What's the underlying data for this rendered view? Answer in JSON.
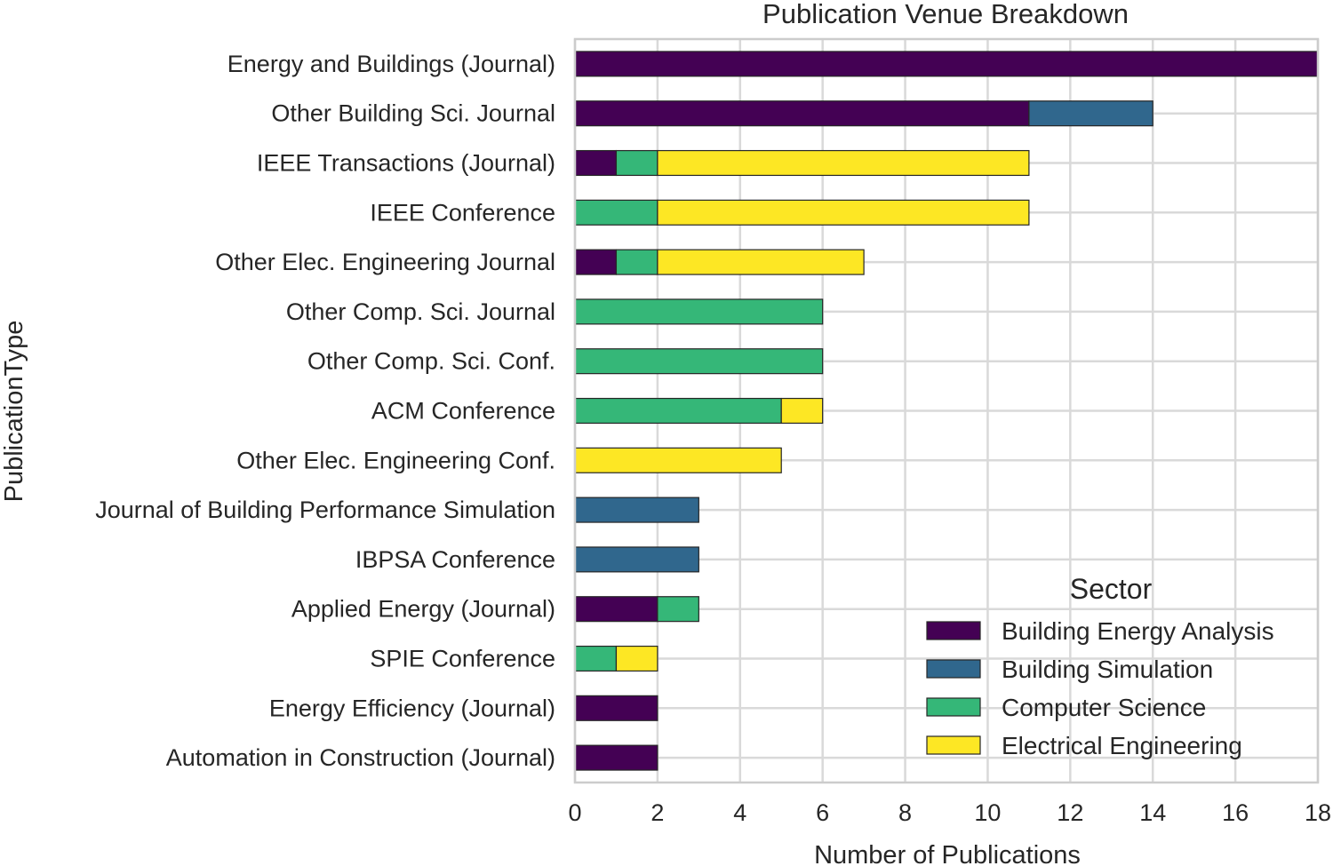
{
  "chart_data": {
    "type": "bar",
    "orientation": "horizontal",
    "stacked": true,
    "title": "Publication Venue Breakdown",
    "xlabel": "Number of Publications",
    "ylabel": "PublicationType",
    "xlim": [
      0,
      18
    ],
    "xticks": [
      0,
      2,
      4,
      6,
      8,
      10,
      12,
      14,
      16,
      18
    ],
    "grid": true,
    "categories": [
      "Energy and Buildings (Journal)",
      "Other Building Sci. Journal",
      "IEEE Transactions (Journal)",
      "IEEE Conference",
      "Other Elec. Engineering Journal",
      "Other Comp. Sci. Journal",
      "Other Comp. Sci. Conf.",
      "ACM Conference",
      "Other Elec. Engineering Conf.",
      "Journal of Building Performance Simulation",
      "IBPSA Conference",
      "Applied Energy (Journal)",
      "SPIE Conference",
      "Energy Efficiency (Journal)",
      "Automation in Construction (Journal)"
    ],
    "series": [
      {
        "name": "Building Energy Analysis",
        "color": "#440154",
        "values": [
          18,
          11,
          1,
          0,
          1,
          0,
          0,
          0,
          0,
          0,
          0,
          2,
          0,
          2,
          2
        ]
      },
      {
        "name": "Building Simulation",
        "color": "#30678d",
        "values": [
          0,
          3,
          0,
          0,
          0,
          0,
          0,
          0,
          0,
          3,
          3,
          0,
          0,
          0,
          0
        ]
      },
      {
        "name": "Computer Science",
        "color": "#35b778",
        "values": [
          0,
          0,
          1,
          2,
          1,
          6,
          6,
          5,
          0,
          0,
          0,
          1,
          1,
          0,
          0
        ]
      },
      {
        "name": "Electrical Engineering",
        "color": "#fde724",
        "values": [
          0,
          0,
          9,
          9,
          5,
          0,
          0,
          1,
          5,
          0,
          0,
          0,
          1,
          0,
          0
        ]
      }
    ],
    "legend": {
      "title": "Sector",
      "position": "lower-right"
    }
  }
}
